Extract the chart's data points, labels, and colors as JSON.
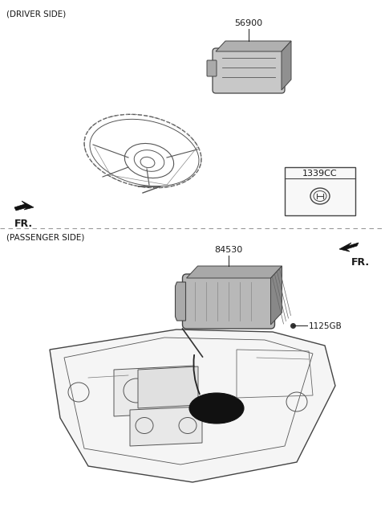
{
  "background_color": "#ffffff",
  "top_section_label": "(DRIVER SIDE)",
  "bottom_section_label": "(PASSENGER SIDE)",
  "fr_label": "FR.",
  "part_numbers": {
    "airbag_driver": "56900",
    "ref_box": "1339CC",
    "airbag_passenger": "84530",
    "bolt": "1125GB"
  },
  "font_color": "#1a1a1a",
  "line_color": "#444444",
  "light_line": "#888888"
}
